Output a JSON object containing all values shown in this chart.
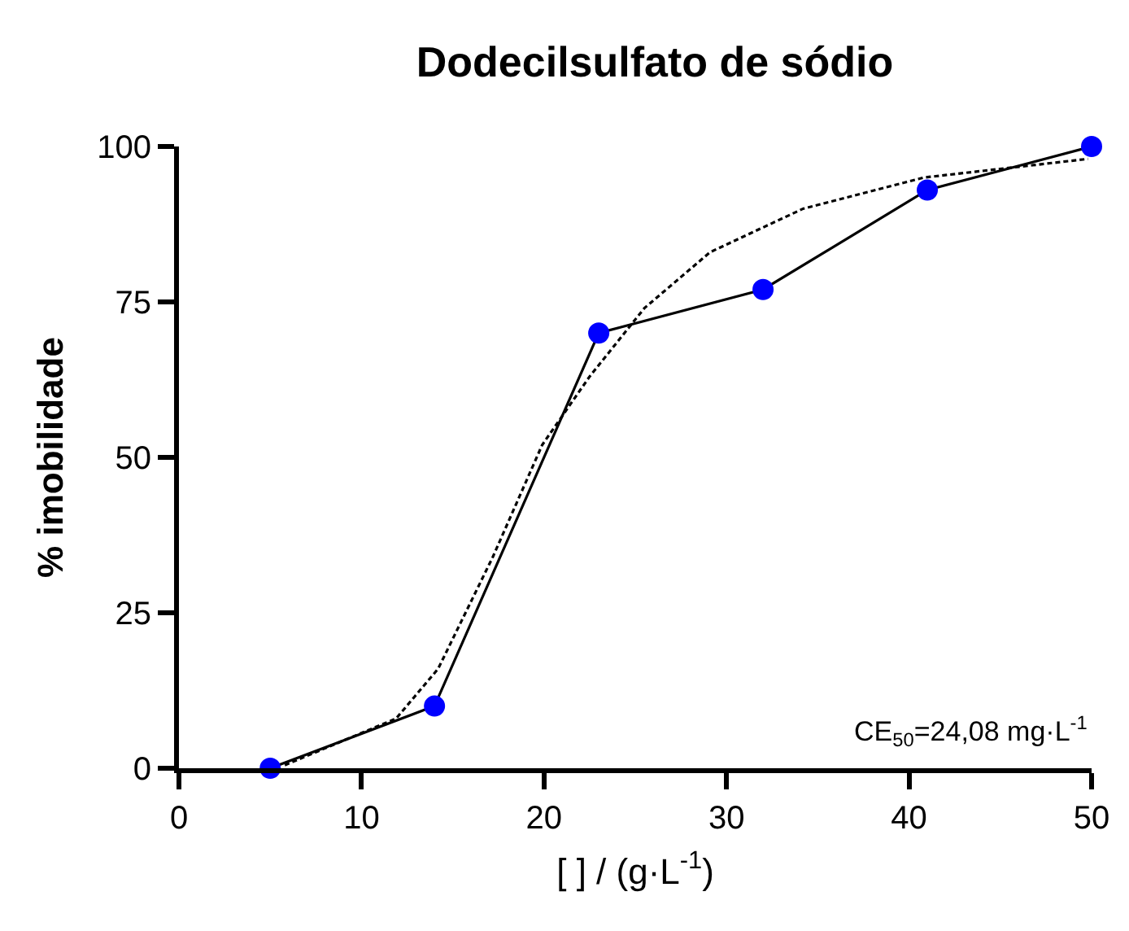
{
  "chart_data": {
    "type": "line",
    "title": "Dodecilsulfato de sódio",
    "xlabel": "[ ] / (g·L$^{-1}$)",
    "ylabel": "% imobilidade",
    "xlim": [
      0,
      50
    ],
    "xticks": [
      0,
      10,
      20,
      30,
      40,
      50
    ],
    "ylim": [
      0,
      100
    ],
    "yticks": [
      0,
      25,
      50,
      75,
      100
    ],
    "series": [
      {
        "color": "#0000ff",
        "marker": "circle",
        "line_style": "solid",
        "x": [
          5,
          14,
          23,
          32,
          41,
          50
        ],
        "values": [
          0,
          10,
          70,
          77,
          93,
          100
        ]
      },
      {
        "color": "#000000",
        "marker": "none",
        "line_style": "dashed",
        "x": [
          5.8,
          11.9,
          14.2,
          17.2,
          19.9,
          22.5,
          25.5,
          29.1,
          34.2,
          40.8,
          49.8
        ],
        "values": [
          0.5,
          8,
          16,
          34,
          52,
          63,
          74,
          83,
          90,
          95,
          98
        ]
      }
    ],
    "annotations": [
      "CE$_{50}$=24,08 mg·L$^{-1}$"
    ]
  }
}
